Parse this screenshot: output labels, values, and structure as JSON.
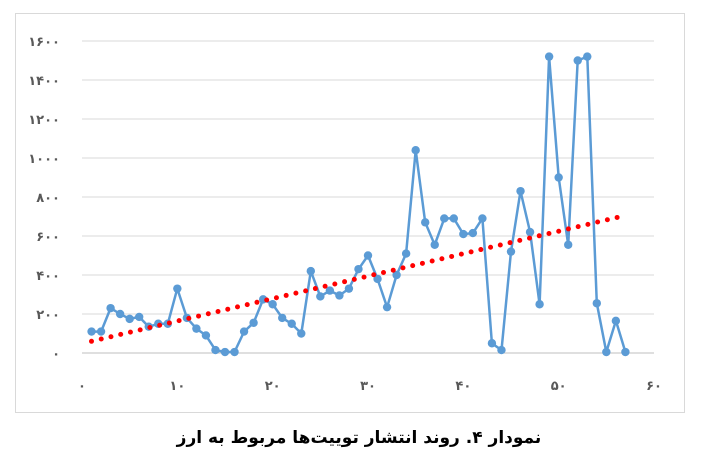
{
  "caption": "نمودار ۴. روند انتشار توییت‌ها مربوط به ارز",
  "chart_data": {
    "type": "line",
    "title": "",
    "xlabel": "",
    "ylabel": "",
    "xlim": [
      0,
      60
    ],
    "ylim": [
      0,
      1600
    ],
    "x_ticks": [
      0,
      10,
      20,
      30,
      40,
      50,
      60
    ],
    "x_tick_labels": [
      "۰",
      "۱۰",
      "۲۰",
      "۳۰",
      "۴۰",
      "۵۰",
      "۶۰"
    ],
    "y_ticks": [
      0,
      200,
      400,
      600,
      800,
      1000,
      1200,
      1400,
      1600
    ],
    "y_tick_labels": [
      "۰",
      "۲۰۰",
      "۴۰۰",
      "۶۰۰",
      "۸۰۰",
      "۱۰۰۰",
      "۱۲۰۰",
      "۱۴۰۰",
      "۱۶۰۰"
    ],
    "grid": "horizontal",
    "legend": "none",
    "series": [
      {
        "type": "line",
        "color": "#5b9bd5",
        "marker": "circle",
        "x": [
          1,
          2,
          3,
          4,
          5,
          6,
          7,
          8,
          9,
          10,
          11,
          12,
          13,
          14,
          15,
          16,
          17,
          18,
          19,
          20,
          21,
          22,
          23,
          24,
          25,
          26,
          27,
          28,
          29,
          30,
          31,
          32,
          33,
          34,
          35,
          36,
          37,
          38,
          39,
          40,
          41,
          42,
          43,
          44,
          45,
          46,
          47,
          48,
          49,
          50,
          51,
          52,
          53,
          54,
          55,
          56,
          57
        ],
        "y": [
          110,
          110,
          230,
          200,
          175,
          185,
          135,
          150,
          150,
          330,
          180,
          125,
          90,
          15,
          5,
          5,
          110,
          155,
          275,
          250,
          180,
          150,
          100,
          420,
          290,
          320,
          295,
          330,
          430,
          500,
          380,
          235,
          400,
          510,
          1040,
          670,
          555,
          690,
          690,
          610,
          615,
          690,
          50,
          15,
          520,
          830,
          620,
          250,
          1520,
          900,
          555,
          1500,
          1520,
          255,
          5,
          165,
          5
        ]
      },
      {
        "type": "trendline",
        "style": "dotted",
        "color": "#ff0000",
        "x": [
          1,
          57
        ],
        "y": [
          60,
          705
        ]
      }
    ]
  }
}
